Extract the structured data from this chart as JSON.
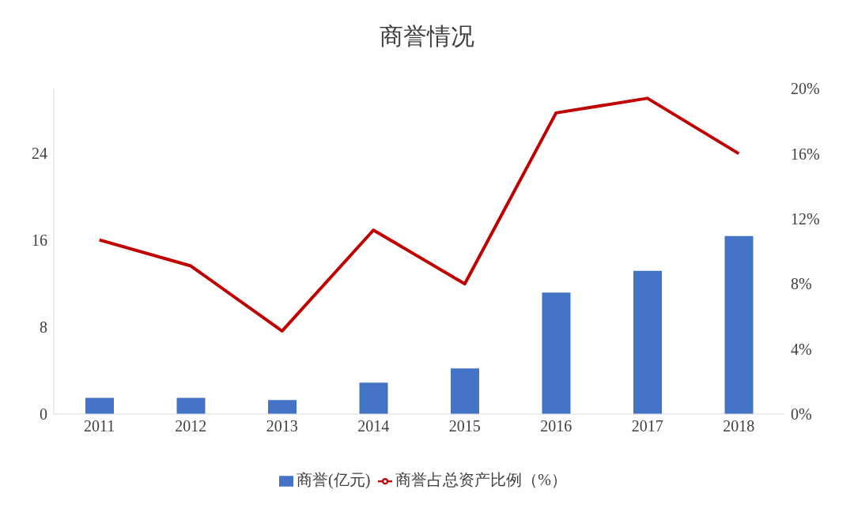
{
  "chart_data": {
    "type": "bar",
    "title": "商誉情况",
    "categories": [
      "2011",
      "2012",
      "2013",
      "2014",
      "2015",
      "2016",
      "2017",
      "2018"
    ],
    "series": [
      {
        "name": "商誉(亿元)",
        "color": "#4472c4",
        "values": [
          1.5,
          1.5,
          1.3,
          2.9,
          4.2,
          11.2,
          13.2,
          16.4
        ]
      },
      {
        "name": "商誉占总资产比例（%）",
        "type": "line",
        "axis": "y2",
        "color": "#c00000",
        "values": [
          10.7,
          9.1,
          5.1,
          11.3,
          8.0,
          18.5,
          19.4,
          16.0
        ]
      }
    ],
    "ylim": [
      0,
      30
    ],
    "yticks": [
      0,
      8,
      16,
      24
    ],
    "y2lim": [
      0,
      20
    ],
    "y2ticks": [
      {
        "value": 0,
        "label": "0%"
      },
      {
        "value": 4,
        "label": "4%"
      },
      {
        "value": 8,
        "label": "8%"
      },
      {
        "value": 12,
        "label": "12%"
      },
      {
        "value": 16,
        "label": "16%"
      },
      {
        "value": 20,
        "label": "20%"
      }
    ],
    "grid": false,
    "legend": "bottom",
    "marker": "none",
    "line_style": "solid"
  }
}
